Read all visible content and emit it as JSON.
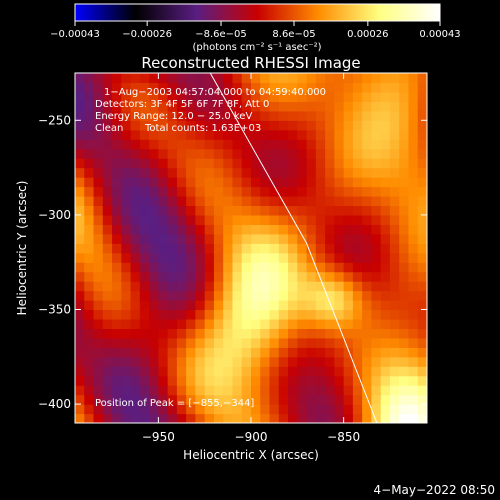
{
  "chart_data": {
    "type": "heatmap",
    "title": "Reconstructed RHESSI Image",
    "xlabel": "Heliocentric X (arcsec)",
    "ylabel": "Heliocentric Y (arcsec)",
    "xlim": [
      -995,
      -805
    ],
    "ylim": [
      -410,
      -225
    ],
    "xticks": [
      -950,
      -900,
      -850
    ],
    "xtick_labels": [
      "−950",
      "−900",
      "−850"
    ],
    "yticks": [
      -250,
      -300,
      -350,
      -400
    ],
    "ytick_labels": [
      "−250",
      "−300",
      "−350",
      "−400"
    ],
    "colorbar": {
      "ticks": [
        -0.00043,
        -0.00026,
        -8.6e-05,
        8.6e-05,
        0.00026,
        0.00043
      ],
      "tick_labels": [
        "−0.00043",
        "−0.00026",
        "−8.6e−05",
        "8.6e−05",
        "0.00026",
        "0.00043"
      ],
      "unit_label": "(photons cm⁻² s⁻¹ asec⁻²)",
      "colors": [
        "#0000ff",
        "#000000",
        "#5a1e82",
        "#c80000",
        "#ff8c00",
        "#ffff80",
        "#ffffff"
      ]
    },
    "annotations": [
      "1−Aug−2003 04:57:04.000 to 04:59:40.000",
      "Detectors: 3F 4F 5F 6F 7F 8F, Att 0",
      "Energy Range: 12.0 − 25.0 keV",
      "Clean",
      "Total counts: 1.63E+03"
    ],
    "peak": {
      "label": "Position of Peak = [−855,−344]",
      "x": -855,
      "y": -344
    },
    "peak_value": 0.00043,
    "limb_points": [
      [
        -922,
        -225
      ],
      [
        -870,
        -315
      ],
      [
        -832,
        -410
      ]
    ],
    "timestamp": "4−May−2022 08:50"
  }
}
